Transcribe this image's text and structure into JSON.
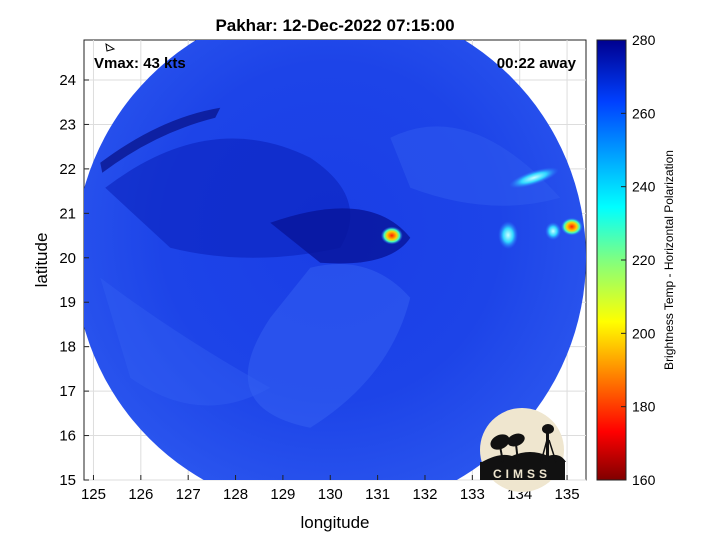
{
  "chart_data": {
    "type": "heatmap",
    "title": "Pakhar: 12-Dec-2022 07:15:00",
    "xlabel": "longitude",
    "ylabel": "latitude",
    "xlim": [
      124.8,
      135.4
    ],
    "ylim": [
      15.0,
      24.9
    ],
    "x_ticks": [
      125,
      126,
      127,
      128,
      129,
      130,
      131,
      132,
      133,
      134,
      135
    ],
    "y_ticks": [
      15,
      16,
      17,
      18,
      19,
      20,
      21,
      22,
      23,
      24
    ],
    "grid": true,
    "annotations": {
      "vmax": "Vmax: 43 kts",
      "time_offset": "00:22 away"
    },
    "colorbar": {
      "label": "Brightness Temp - Horizontal Polarization",
      "range": [
        160,
        280
      ],
      "ticks": [
        160,
        180,
        200,
        220,
        240,
        260,
        280
      ],
      "colormap": "jet"
    },
    "swath": {
      "center_lon": 130.0,
      "center_lat": 20.0,
      "radius_deg": 5.4
    },
    "features": [
      {
        "name": "storm-center-hot-spot",
        "lon": 131.3,
        "lat": 20.5,
        "value": 185
      },
      {
        "name": "east-edge-hot-spot",
        "lon": 135.1,
        "lat": 20.7,
        "value": 180
      },
      {
        "name": "east-cells",
        "lon": 134.6,
        "lat": 20.6,
        "value": 235
      },
      {
        "name": "northeast-band",
        "lon": 134.3,
        "lat": 21.8,
        "value": 240
      }
    ]
  },
  "logo": {
    "text": "CIMSS"
  }
}
